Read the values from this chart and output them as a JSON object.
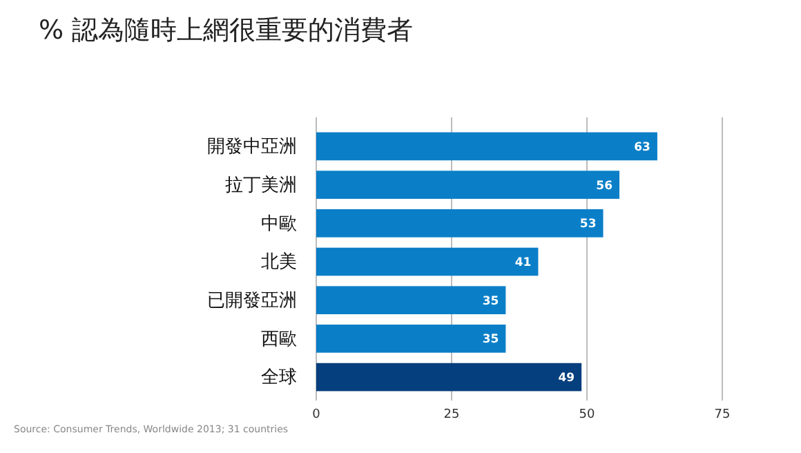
{
  "chart_data": {
    "type": "bar",
    "orientation": "horizontal",
    "title": "% 認為隨時上網很重要的消費者",
    "categories": [
      "開發中亞洲",
      "拉丁美洲",
      "中歐",
      "北美",
      "已開發亞洲",
      "西歐",
      "全球"
    ],
    "values": [
      63,
      56,
      53,
      41,
      35,
      35,
      49
    ],
    "colors": [
      "#0a7fc8",
      "#0a7fc8",
      "#0a7fc8",
      "#0a7fc8",
      "#0a7fc8",
      "#0a7fc8",
      "#053f7d"
    ],
    "xlim": [
      0,
      75
    ],
    "xticks": [
      0,
      25,
      50,
      75
    ],
    "grid": "x",
    "data_labels": true,
    "annotations": [
      "Source: Consumer Trends, Worldwide 2013; 31 countries"
    ]
  }
}
